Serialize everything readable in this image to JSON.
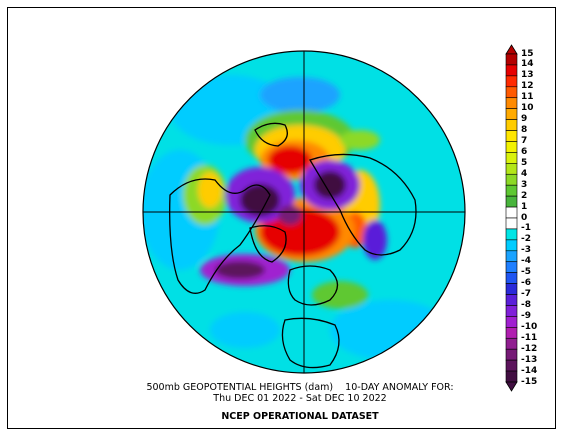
{
  "title": {
    "line1": "500mb GEOPOTENTIAL HEIGHTS (dam)    10-DAY ANOMALY FOR:",
    "line2": "Thu DEC 01 2022 - Sat DEC 10 2022",
    "dataset": "NCEP OPERATIONAL DATASET"
  },
  "legend": {
    "ticks": [
      "15",
      "14",
      "13",
      "12",
      "11",
      "10",
      "9",
      "8",
      "7",
      "6",
      "5",
      "4",
      "3",
      "2",
      "1",
      "0",
      "-1",
      "-2",
      "-3",
      "-4",
      "-5",
      "-6",
      "-7",
      "-8",
      "-9",
      "-10",
      "-11",
      "-12",
      "-13",
      "-14",
      "-15"
    ],
    "colors": [
      "#b30000",
      "#e60000",
      "#ff2a00",
      "#ff5a00",
      "#ff8a00",
      "#ffaa00",
      "#ffcc00",
      "#ffe600",
      "#f2f200",
      "#d9f20d",
      "#b3e619",
      "#8cd926",
      "#5ec832",
      "#48b43c",
      "#ffffff",
      "#ffffff",
      "#00e5e5",
      "#00ccff",
      "#1aa3ff",
      "#1f7fff",
      "#1f55f2",
      "#2a2ad9",
      "#5a1fd9",
      "#8020d9",
      "#a020d0",
      "#b01eb0",
      "#901e90",
      "#761a76",
      "#5c145c",
      "#410e41"
    ]
  },
  "map": {
    "type": "northern hemisphere polar stereographic",
    "field": "500mb geopotential height anomaly",
    "units": "dam"
  }
}
